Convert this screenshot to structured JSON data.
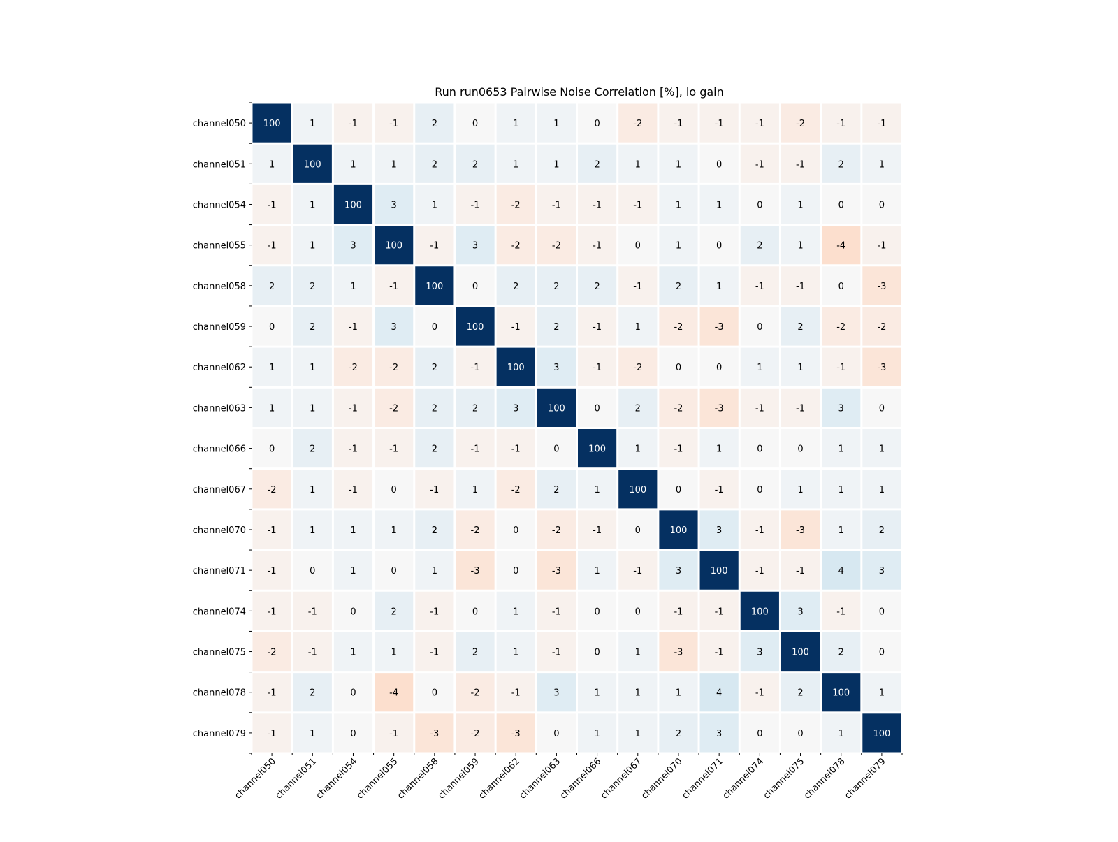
{
  "chart_data": {
    "type": "heatmap",
    "title": "Run run0653 Pairwise Noise Correlation [%], lo gain",
    "xlabel": "",
    "ylabel": "",
    "labels": [
      "channel050",
      "channel051",
      "channel054",
      "channel055",
      "channel058",
      "channel059",
      "channel062",
      "channel063",
      "channel066",
      "channel067",
      "channel070",
      "channel071",
      "channel074",
      "channel075",
      "channel078",
      "channel079"
    ],
    "matrix": [
      [
        100,
        1,
        -1,
        -1,
        2,
        0,
        1,
        1,
        0,
        -2,
        -1,
        -1,
        -1,
        -2,
        -1,
        -1
      ],
      [
        1,
        100,
        1,
        1,
        2,
        2,
        1,
        1,
        2,
        1,
        1,
        0,
        -1,
        -1,
        2,
        1
      ],
      [
        -1,
        1,
        100,
        3,
        1,
        -1,
        -2,
        -1,
        -1,
        -1,
        1,
        1,
        0,
        1,
        0,
        0
      ],
      [
        -1,
        1,
        3,
        100,
        -1,
        3,
        -2,
        -2,
        -1,
        0,
        1,
        0,
        2,
        1,
        -4,
        -1
      ],
      [
        2,
        2,
        1,
        -1,
        100,
        0,
        2,
        2,
        2,
        -1,
        2,
        1,
        -1,
        -1,
        0,
        -3
      ],
      [
        0,
        2,
        -1,
        3,
        0,
        100,
        -1,
        2,
        -1,
        1,
        -2,
        -3,
        0,
        2,
        -2,
        -2
      ],
      [
        1,
        1,
        -2,
        -2,
        2,
        -1,
        100,
        3,
        -1,
        -2,
        0,
        0,
        1,
        1,
        -1,
        -3
      ],
      [
        1,
        1,
        -1,
        -2,
        2,
        2,
        3,
        100,
        0,
        2,
        -2,
        -3,
        -1,
        -1,
        3,
        0
      ],
      [
        0,
        2,
        -1,
        -1,
        2,
        -1,
        -1,
        0,
        100,
        1,
        -1,
        1,
        0,
        0,
        1,
        1
      ],
      [
        -2,
        1,
        -1,
        0,
        -1,
        1,
        -2,
        2,
        1,
        100,
        0,
        -1,
        0,
        1,
        1,
        1
      ],
      [
        -1,
        1,
        1,
        1,
        2,
        -2,
        0,
        -2,
        -1,
        0,
        100,
        3,
        -1,
        -3,
        1,
        2
      ],
      [
        -1,
        0,
        1,
        0,
        1,
        -3,
        0,
        -3,
        1,
        -1,
        3,
        100,
        -1,
        -1,
        4,
        3
      ],
      [
        -1,
        -1,
        0,
        2,
        -1,
        0,
        1,
        -1,
        0,
        0,
        -1,
        -1,
        100,
        3,
        -1,
        0
      ],
      [
        -2,
        -1,
        1,
        1,
        -1,
        2,
        1,
        -1,
        0,
        1,
        -3,
        -1,
        3,
        100,
        2,
        0
      ],
      [
        -1,
        2,
        0,
        -4,
        0,
        -2,
        -1,
        3,
        1,
        1,
        1,
        4,
        -1,
        2,
        100,
        1
      ],
      [
        -1,
        1,
        0,
        -1,
        -3,
        -2,
        -3,
        0,
        1,
        1,
        2,
        3,
        0,
        0,
        1,
        100
      ]
    ],
    "colormap": "RdBu diverging",
    "colors": {
      "diagonal": "#053061",
      "positive_tint": "#d1e5f0",
      "negative_tint": "#fddbc7",
      "neutral": "#f7f7f7",
      "cell_gap": "#ffffff"
    },
    "grid": false,
    "legend": "none"
  }
}
